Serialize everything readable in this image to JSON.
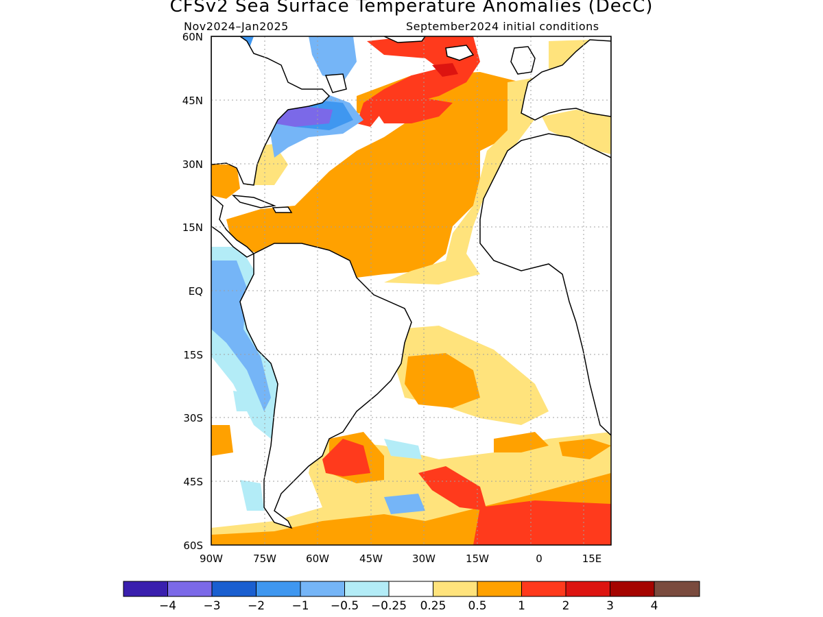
{
  "title": "CFSv2 Sea Surface Temperature Anomalies (DecC)",
  "subtitle_left": "Nov2024–Jan2025",
  "subtitle_right": "September2024 initial conditions",
  "lat_labels": [
    "60N",
    "45N",
    "30N",
    "15N",
    "EQ",
    "15S",
    "30S",
    "45S",
    "60S"
  ],
  "lon_labels": [
    "90W",
    "75W",
    "60W",
    "45W",
    "30W",
    "15W",
    "0",
    "15E"
  ],
  "colorbar": {
    "colors": [
      "#3a1fae",
      "#7b69e8",
      "#1a5fd0",
      "#3f97f0",
      "#75b5f7",
      "#b3ecf7",
      "#ffffff",
      "#ffe37c",
      "#ffa100",
      "#ff3a1c",
      "#dd1410",
      "#a50400",
      "#7a4b3e"
    ],
    "labels": [
      "−4",
      "−3",
      "−2",
      "−1",
      "−0.5",
      "−0.25",
      "0.25",
      "0.5",
      "1",
      "2",
      "3",
      "4"
    ]
  }
}
